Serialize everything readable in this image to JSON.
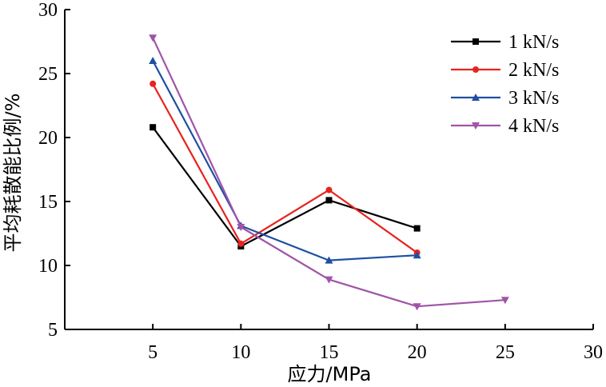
{
  "chart_data": {
    "type": "line",
    "title": "",
    "xlabel": "应力/MPa",
    "ylabel": "平均耗散能比例/%",
    "xlim": [
      0,
      30
    ],
    "ylim": [
      5,
      30
    ],
    "x_ticks": [
      5,
      10,
      15,
      20,
      25,
      30
    ],
    "y_ticks": [
      5,
      10,
      15,
      20,
      25,
      30
    ],
    "x_tick_labels": [
      "5",
      "10",
      "15",
      "20",
      "25",
      "30"
    ],
    "y_tick_labels": [
      "5",
      "10",
      "15",
      "20",
      "25",
      "30"
    ],
    "grid": false,
    "legend_position": "top-right",
    "series": [
      {
        "name": "1 kN/s",
        "color": "#000000",
        "marker": "square",
        "x": [
          5,
          10,
          15,
          20
        ],
        "y": [
          20.8,
          11.5,
          15.1,
          12.9
        ]
      },
      {
        "name": "2 kN/s",
        "color": "#e8231f",
        "marker": "circle",
        "x": [
          5,
          10,
          15,
          20
        ],
        "y": [
          24.2,
          11.7,
          15.9,
          11.0
        ]
      },
      {
        "name": "3 kN/s",
        "color": "#1f4fa3",
        "marker": "triangle-up",
        "x": [
          5,
          10,
          15,
          20
        ],
        "y": [
          26.0,
          13.1,
          10.4,
          10.8
        ]
      },
      {
        "name": "4 kN/s",
        "color": "#a054a8",
        "marker": "triangle-down",
        "x": [
          5,
          10,
          15,
          20,
          25
        ],
        "y": [
          27.8,
          13.0,
          8.9,
          6.8,
          7.3
        ]
      }
    ]
  }
}
